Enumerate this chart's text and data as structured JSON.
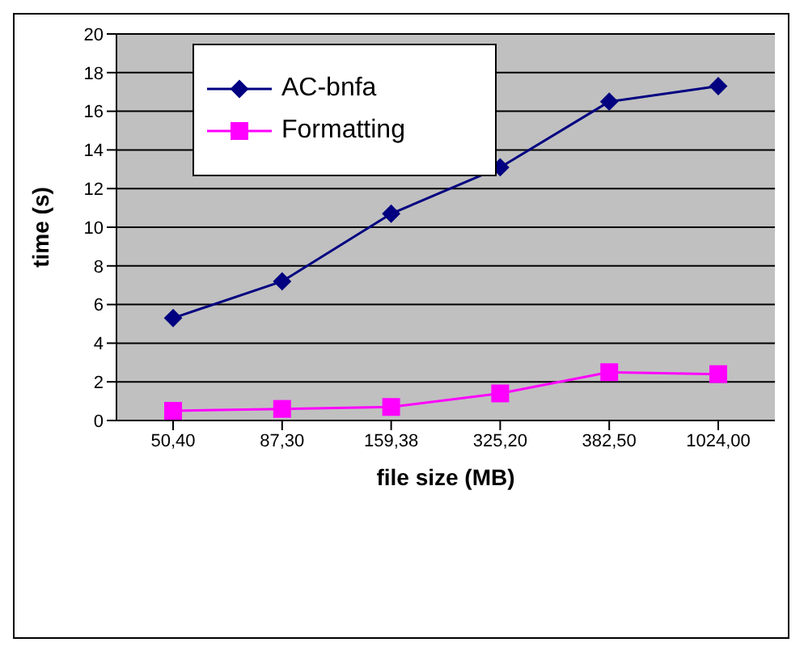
{
  "chart_data": {
    "type": "line",
    "xlabel": "file size (MB)",
    "ylabel": "time (s)",
    "categories": [
      "50,40",
      "87,30",
      "159,38",
      "325,20",
      "382,50",
      "1024,00"
    ],
    "series": [
      {
        "name": "AC-bnfa",
        "color": "#000080",
        "marker": "diamond",
        "values": [
          5.3,
          7.2,
          10.7,
          13.1,
          16.5,
          17.3
        ]
      },
      {
        "name": "Formatting",
        "color": "#ff00ff",
        "marker": "square",
        "values": [
          0.5,
          0.6,
          0.7,
          1.4,
          2.5,
          2.4
        ]
      }
    ],
    "ylim": [
      0,
      20
    ],
    "yticks": [
      0,
      2,
      4,
      6,
      8,
      10,
      12,
      14,
      16,
      18,
      20
    ],
    "grid": "y",
    "legend": "top left"
  }
}
